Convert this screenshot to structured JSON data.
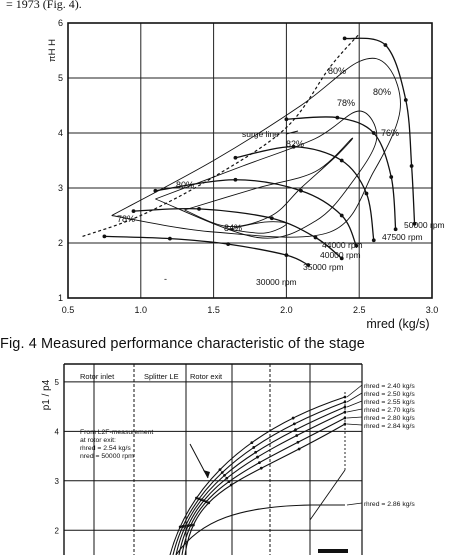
{
  "page": {
    "top_text": "= 1973 (Fig. 4).",
    "caption": "Fig. 4   Measured performance characteristic of  the stage"
  },
  "chart_data": [
    {
      "type": "line",
      "title": "",
      "xlabel": "ṁred (kg/s)",
      "ylabel": "πH H",
      "xlim": [
        0.5,
        3.0
      ],
      "ylim": [
        1,
        6
      ],
      "xticks": [
        "0.5",
        "1.0",
        "1.5",
        "2.0",
        "2.5",
        "3.0"
      ],
      "yticks": [
        "1",
        "2",
        "3",
        "4",
        "5",
        "6"
      ],
      "grid": true,
      "labels": {
        "surge": "surge line",
        "efficiency": [
          "84%",
          "82%",
          "80%",
          "78%",
          "80%",
          "78%",
          "80%",
          "76%"
        ],
        "speeds": [
          "30000 rpm",
          "35000 rpm",
          "40000 rpm",
          "44000 rpm",
          "47500 rpm",
          "50000 rpm"
        ],
        "minus": "-"
      },
      "surge_line": [
        [
          0.6,
          2.12
        ],
        [
          1.0,
          2.5
        ],
        [
          1.5,
          3.2
        ],
        [
          2.0,
          4.1
        ],
        [
          2.3,
          5.2
        ],
        [
          2.5,
          5.8
        ]
      ],
      "series": [
        {
          "name": "30000 rpm",
          "x": [
            0.75,
            1.2,
            1.6,
            2.0,
            2.15
          ],
          "y": [
            2.12,
            2.08,
            1.98,
            1.78,
            1.6
          ]
        },
        {
          "name": "35000 rpm",
          "x": [
            0.95,
            1.4,
            1.9,
            2.2,
            2.38
          ],
          "y": [
            2.58,
            2.62,
            2.45,
            2.1,
            1.72
          ]
        },
        {
          "name": "40000 rpm",
          "x": [
            1.1,
            1.65,
            2.1,
            2.38,
            2.48
          ],
          "y": [
            2.95,
            3.15,
            2.95,
            2.5,
            1.95
          ]
        },
        {
          "name": "44000 rpm",
          "x": [
            1.65,
            2.05,
            2.38,
            2.55,
            2.6
          ],
          "y": [
            3.55,
            3.75,
            3.5,
            2.9,
            2.05
          ]
        },
        {
          "name": "47500 rpm",
          "x": [
            2.0,
            2.35,
            2.6,
            2.72,
            2.75
          ],
          "y": [
            4.25,
            4.28,
            4.0,
            3.2,
            2.25
          ]
        },
        {
          "name": "50000 rpm",
          "x": [
            2.4,
            2.68,
            2.82,
            2.86,
            2.88
          ],
          "y": [
            5.72,
            5.6,
            4.6,
            3.4,
            2.35
          ]
        }
      ]
    },
    {
      "type": "line",
      "title": "",
      "ylabel": "p1 / p4",
      "ylim": [
        1.5,
        5.2
      ],
      "yticks": [
        "2",
        "3",
        "4",
        "5"
      ],
      "grid": true,
      "labels": {
        "stations": [
          "Rotor inlet",
          "Splitter LE",
          "Rotor exit"
        ],
        "annotation": [
          "From L2F-measurement",
          "at rotor exit:",
          "ṁred = 2.54 kg/s",
          "nred = 50000 rpm"
        ],
        "legend": [
          "ṁred = 2.40 kg/s",
          "ṁred = 2.50 kg/s",
          "ṁred = 2.55 kg/s",
          "ṁred = 2.70 kg/s",
          "ṁred = 2.80 kg/s",
          "ṁred = 2.84 kg/s",
          "ṁred = 2.86 kg/s"
        ]
      }
    }
  ]
}
